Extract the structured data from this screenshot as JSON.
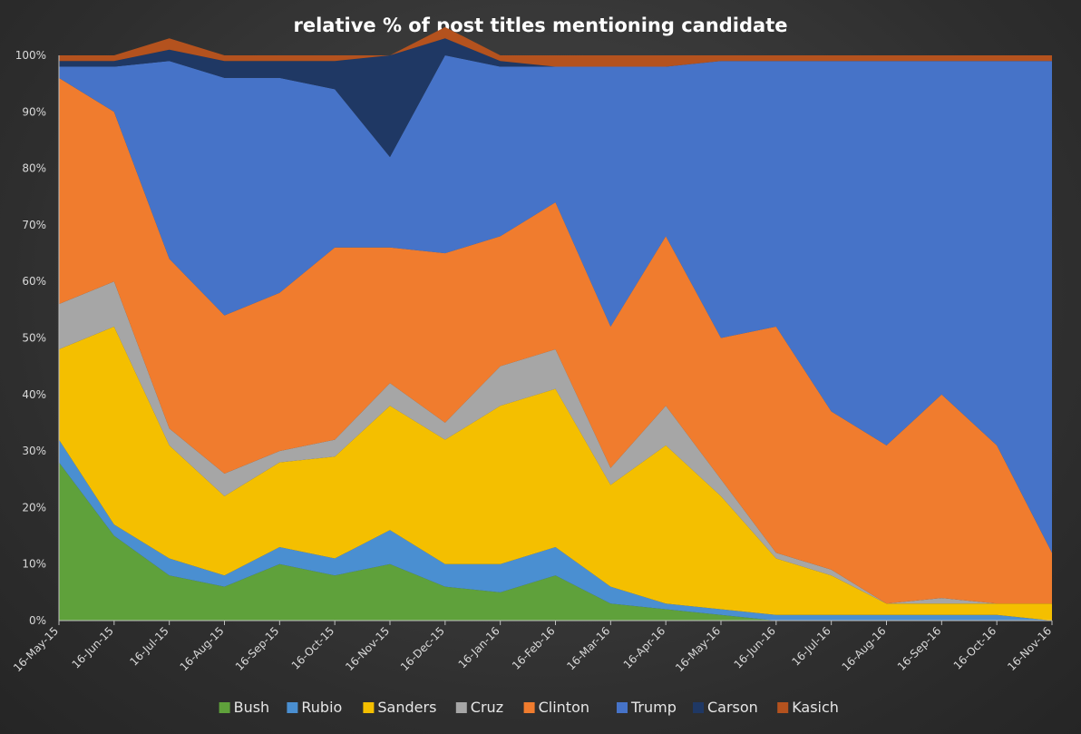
{
  "chart_data": {
    "type": "area",
    "stacked": true,
    "normalized": true,
    "title": "relative % of post titles mentioning candidate",
    "xlabel": "",
    "ylabel": "",
    "ylim": [
      0,
      100
    ],
    "y_ticks": [
      "0%",
      "10%",
      "20%",
      "30%",
      "40%",
      "50%",
      "60%",
      "70%",
      "80%",
      "90%",
      "100%"
    ],
    "x_ticks": [
      "16-May-15",
      "16-Jun-15",
      "16-Jul-15",
      "16-Aug-15",
      "16-Sep-15",
      "16-Oct-15",
      "16-Nov-15",
      "16-Dec-15",
      "16-Jan-16",
      "16-Feb-16",
      "16-Mar-16",
      "16-Apr-16",
      "16-May-16",
      "16-Jun-16",
      "16-Jul-16",
      "16-Aug-16",
      "16-Sep-16",
      "16-Oct-16",
      "16-Nov-16"
    ],
    "legend_position": "bottom",
    "grid": false,
    "series": [
      {
        "name": "Bush",
        "color": "#5fa13b",
        "values": [
          28,
          15,
          8,
          6,
          10,
          8,
          10,
          6,
          5,
          8,
          3,
          2,
          1,
          0,
          0,
          0,
          0,
          0,
          0
        ]
      },
      {
        "name": "Rubio",
        "color": "#4a8fd1",
        "values": [
          4,
          2,
          3,
          2,
          3,
          3,
          6,
          4,
          5,
          5,
          3,
          1,
          1,
          1,
          1,
          1,
          1,
          1,
          0
        ]
      },
      {
        "name": "Sanders",
        "color": "#f4bf00",
        "values": [
          16,
          35,
          20,
          14,
          15,
          18,
          22,
          22,
          28,
          28,
          18,
          28,
          20,
          10,
          7,
          2,
          2,
          2,
          3
        ]
      },
      {
        "name": "Cruz",
        "color": "#a6a6a6",
        "values": [
          8,
          8,
          3,
          4,
          2,
          3,
          4,
          3,
          7,
          7,
          3,
          7,
          3,
          1,
          1,
          0,
          1,
          0,
          0
        ]
      },
      {
        "name": "Clinton",
        "color": "#f07c2e",
        "values": [
          40,
          30,
          30,
          28,
          28,
          34,
          24,
          30,
          23,
          26,
          25,
          30,
          25,
          40,
          28,
          28,
          36,
          28,
          9
        ]
      },
      {
        "name": "Trump",
        "color": "#4673c8",
        "values": [
          2,
          8,
          35,
          42,
          38,
          28,
          16,
          35,
          30,
          24,
          46,
          30,
          49,
          47,
          62,
          68,
          59,
          68,
          87
        ]
      },
      {
        "name": "Carson",
        "color": "#1f3864",
        "values": [
          1,
          1,
          2,
          3,
          3,
          5,
          18,
          3,
          1,
          0,
          0,
          0,
          0,
          0,
          0,
          0,
          0,
          0,
          0
        ]
      },
      {
        "name": "Kasich",
        "color": "#b4521e",
        "values": [
          1,
          1,
          2,
          1,
          1,
          1,
          0,
          2,
          1,
          2,
          2,
          2,
          1,
          1,
          1,
          1,
          1,
          1,
          1
        ]
      }
    ]
  }
}
